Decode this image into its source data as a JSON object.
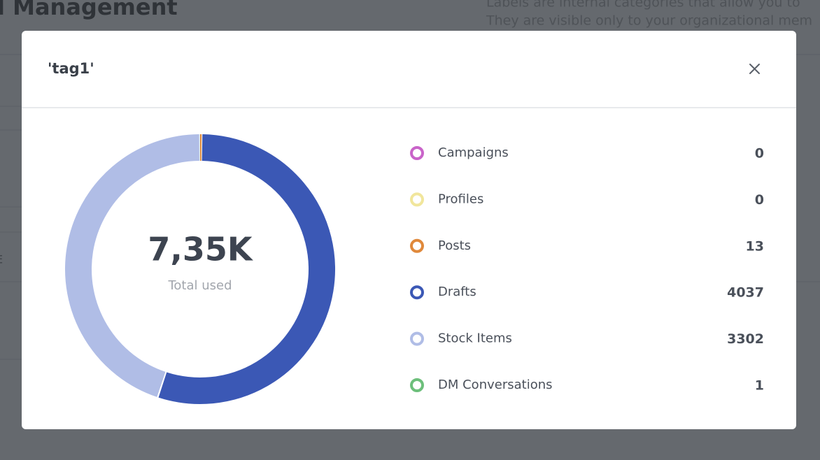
{
  "background": {
    "heading": "l Management",
    "description_lines": [
      "Labels are internal categories that allow you to",
      "They are visible only to your organizational mem"
    ],
    "column_fragment": "E"
  },
  "modal": {
    "title": "'tag1'"
  },
  "chart_data": {
    "type": "donut",
    "center_value": "7,35K",
    "center_label": "Total used",
    "categories": [
      "Campaigns",
      "Profiles",
      "Posts",
      "Drafts",
      "Stock Items",
      "DM Conversations"
    ],
    "values": [
      0,
      0,
      13,
      4037,
      3302,
      1
    ],
    "colors": [
      "#c964c9",
      "#f1e69c",
      "#e0893b",
      "#3b58b5",
      "#b0bde6",
      "#6dbf7b"
    ]
  }
}
